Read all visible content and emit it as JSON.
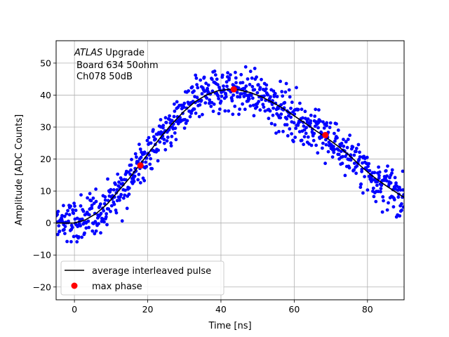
{
  "chart_data": {
    "type": "scatter",
    "xlabel": "Time [ns]",
    "ylabel": "Amplitude [ADC Counts]",
    "xlim": [
      -5,
      90
    ],
    "ylim": [
      -24,
      57
    ],
    "xticks": [
      0,
      20,
      40,
      60,
      80
    ],
    "yticks": [
      -20,
      -10,
      0,
      10,
      20,
      30,
      40,
      50
    ],
    "grid": true,
    "annotation": {
      "experiment": "ATLAS",
      "line1_rest": " Upgrade",
      "line2": "Board 634 50ohm",
      "line3": "Ch078 50dB"
    },
    "legend": {
      "placement": "lower-left",
      "entries": [
        {
          "label": "average interleaved pulse",
          "kind": "line",
          "color": "#000000"
        },
        {
          "label": "max phase",
          "kind": "marker",
          "color": "#ff0000"
        }
      ]
    },
    "series": [
      {
        "kind": "scatter",
        "color": "#0000ff",
        "description_source": "dense per-sample measurements scattered around the average pulse",
        "noise_sd": 3.5,
        "x_range": [
          -5,
          90
        ],
        "sample_step": 0.11
      },
      {
        "name": "average interleaved pulse",
        "kind": "line",
        "color": "#000000",
        "x": [
          -5,
          0,
          3,
          6,
          9,
          12,
          15,
          18,
          21,
          24,
          27,
          30,
          33,
          36,
          39,
          42,
          45,
          48,
          51,
          54,
          57,
          60,
          63,
          66,
          69,
          72,
          75,
          78,
          81,
          84,
          87,
          90
        ],
        "y": [
          0,
          0,
          1,
          3,
          6,
          10,
          14,
          18.5,
          23,
          27.5,
          31.5,
          35,
          38,
          40,
          41.3,
          41.8,
          41.6,
          40.8,
          39.5,
          37.8,
          35.8,
          33.5,
          31.2,
          28.8,
          26.5,
          24,
          21.2,
          18,
          15,
          12.5,
          10.2,
          8
        ]
      },
      {
        "name": "max phase",
        "kind": "marker",
        "color": "#ff0000",
        "x": [
          18,
          43.5,
          68.5
        ],
        "y": [
          18,
          41.8,
          27.5
        ]
      }
    ]
  }
}
